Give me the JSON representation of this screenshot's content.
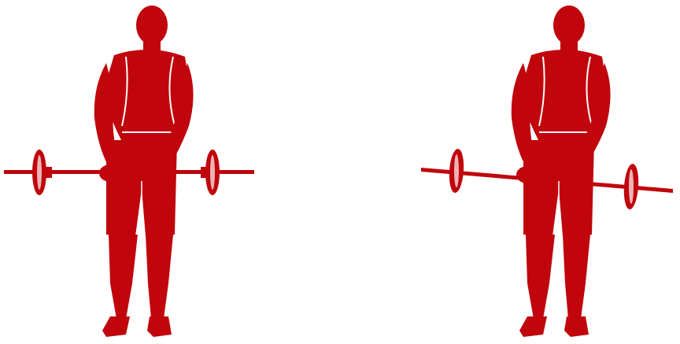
{
  "image": {
    "colors": {
      "figure": "#c0050c",
      "figure_shadow": "#8e0308",
      "highlight": "#ffffff",
      "background": "#ffffff"
    },
    "figures": [
      {
        "label": "",
        "pose": "barbell-behind-back-start",
        "bar_tilt_deg": 0
      },
      {
        "label": "",
        "pose": "barbell-behind-back-tilted",
        "bar_tilt_deg": 4
      }
    ]
  }
}
